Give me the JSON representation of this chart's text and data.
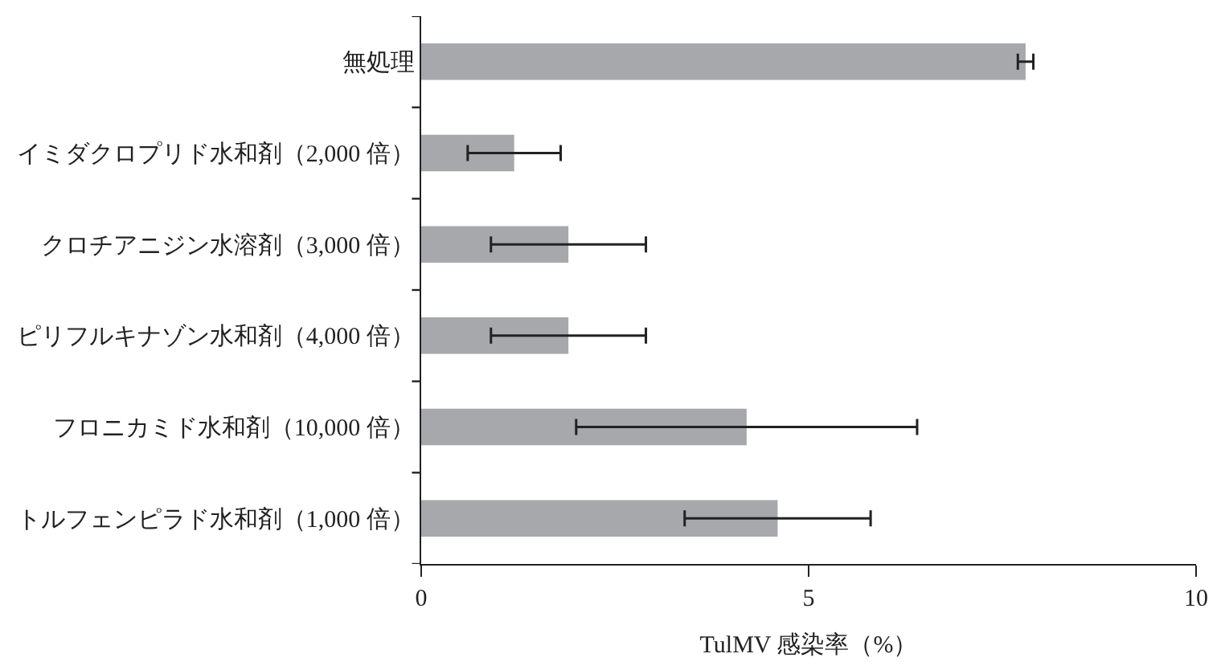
{
  "chart_data": {
    "type": "bar",
    "orientation": "horizontal",
    "xlabel": "TulMV 感染率（%）",
    "categories": [
      "無処理",
      "イミダクロプリド水和剤（2,000 倍）",
      "クロチアニジン水溶剤（3,000 倍）",
      "ピリフルキナゾン水和剤（4,000 倍）",
      "フロニカミド水和剤（10,000 倍）",
      "トルフェンピラド水和剤（1,000 倍）"
    ],
    "values": [
      7.8,
      1.2,
      1.9,
      1.9,
      4.2,
      4.6
    ],
    "errors": [
      0.1,
      0.6,
      1.0,
      1.0,
      2.2,
      1.2
    ],
    "color": "#a7a8ab",
    "xlim": [
      0,
      10
    ],
    "xticks": [
      0,
      5,
      10
    ]
  }
}
